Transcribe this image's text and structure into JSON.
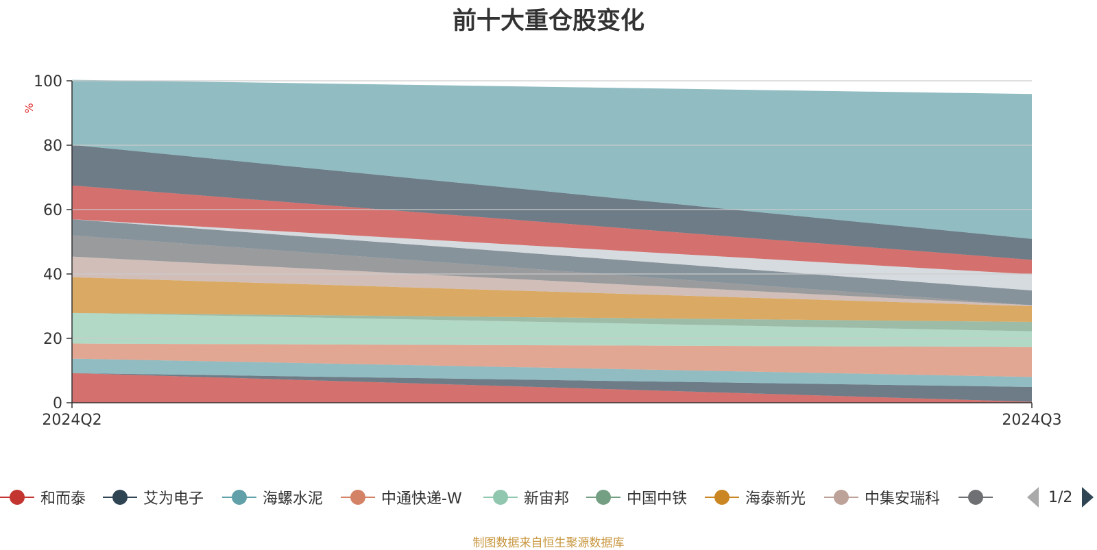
{
  "title": "前十大重仓股变化",
  "source_note": "制图数据来自恒生聚源数据库",
  "legend_pager": "1/2",
  "chart_data": {
    "type": "area",
    "stacked": true,
    "title": "前十大重仓股变化",
    "x": [
      "2024Q2",
      "2024Q3"
    ],
    "ylabel": "%",
    "ylim": [
      0,
      100
    ],
    "yticks": [
      0,
      20,
      40,
      60,
      80,
      100
    ],
    "grid": true,
    "legend_placement": "bottom",
    "series": [
      {
        "name": "和而泰",
        "color": "#c23531",
        "values": [
          9.2,
          0.3
        ]
      },
      {
        "name": "艾为电子",
        "color": "#2f4554",
        "values": [
          0.0,
          4.6
        ]
      },
      {
        "name": "海螺水泥",
        "color": "#61a0a8",
        "values": [
          4.5,
          3.1
        ]
      },
      {
        "name": "中通快递-W",
        "color": "#d48265",
        "values": [
          4.7,
          9.3
        ]
      },
      {
        "name": "新宙邦",
        "color": "#91c7ae",
        "values": [
          9.5,
          4.9
        ]
      },
      {
        "name": "中国中铁",
        "color": "#749f83",
        "values": [
          0.0,
          2.9
        ]
      },
      {
        "name": "海泰新光",
        "color": "#ca8622",
        "values": [
          11.1,
          4.9
        ]
      },
      {
        "name": "中集安瑞科",
        "color": "#bda29a",
        "values": [
          6.4,
          0.3
        ]
      },
      {
        "name": "",
        "color": "#6e7074",
        "values": [
          6.6,
          0.0
        ]
      },
      {
        "name": "",
        "color": "#546570",
        "values": [
          5.0,
          4.6
        ]
      },
      {
        "name": "",
        "color": "#c4ccd3",
        "values": [
          0.0,
          5.0
        ]
      },
      {
        "name": "",
        "color": "#c23531",
        "values": [
          10.5,
          4.5
        ]
      },
      {
        "name": "",
        "color": "#2f4554",
        "values": [
          12.6,
          6.5
        ]
      },
      {
        "name": "",
        "color": "#61a0a8",
        "values": [
          20.2,
          45.0
        ]
      }
    ]
  }
}
